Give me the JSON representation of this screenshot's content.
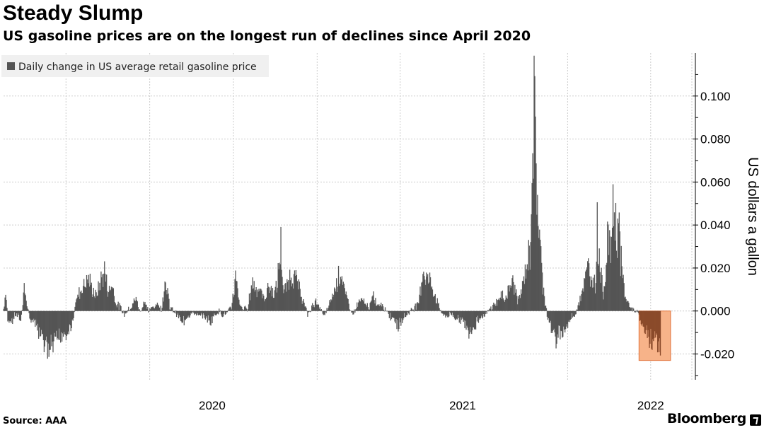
{
  "header": {
    "title": "Steady Slump",
    "subtitle": "US gasoline prices are on the longest run of declines since April 2020"
  },
  "footer": {
    "source": "Source: AAA",
    "brand": "Bloomberg"
  },
  "colors": {
    "bar": "#555555",
    "highlight_fill": "#f7b389",
    "highlight_stroke": "#e2733a",
    "highlight_bar": "#8a4a2a",
    "grid": "#cccccc",
    "legend_bg": "#f0f0f0"
  },
  "chart_data": {
    "type": "bar",
    "title": "Steady Slump",
    "subtitle": "US gasoline prices are on the longest run of declines since April 2020",
    "legend": [
      "Daily change in US average retail gasoline price"
    ],
    "legend_position": "top-left",
    "ylabel": "US dollars a gallon",
    "xlabel": "",
    "ylim": [
      -0.032,
      0.12
    ],
    "yticks": [
      -0.02,
      0.0,
      0.02,
      0.04,
      0.06,
      0.08,
      0.1
    ],
    "ytick_labels": [
      "-0.020",
      "0.000",
      "0.020",
      "0.040",
      "0.060",
      "0.080",
      "0.100"
    ],
    "x_domain": [
      "2019-09-01",
      "2022-05-31"
    ],
    "x_year_labels": [
      {
        "label": "2020",
        "date": "2020-07-01"
      },
      {
        "label": "2021",
        "date": "2021-07-01"
      },
      {
        "label": "2022",
        "date": "2022-04-01"
      }
    ],
    "x_gridlines": [
      "2019-12-01",
      "2020-04-01",
      "2020-08-01",
      "2020-12-01",
      "2021-04-01",
      "2021-08-01",
      "2021-12-01",
      "2022-04-01",
      "2022-05-31"
    ],
    "highlight": {
      "start": "2022-03-15",
      "end": "2022-04-30",
      "y0": -0.023,
      "y1": 0.0
    },
    "series": [
      {
        "name": "Daily change in US average retail gasoline price",
        "keyframes": [
          [
            "2019-09-01",
            0.001
          ],
          [
            "2019-09-04",
            0.011
          ],
          [
            "2019-09-07",
            -0.004
          ],
          [
            "2019-09-12",
            -0.006
          ],
          [
            "2019-09-18",
            -0.002
          ],
          [
            "2019-09-26",
            -0.005
          ],
          [
            "2019-10-01",
            0.012
          ],
          [
            "2019-10-04",
            0.006
          ],
          [
            "2019-10-09",
            -0.004
          ],
          [
            "2019-10-14",
            -0.006
          ],
          [
            "2019-10-20",
            -0.01
          ],
          [
            "2019-10-26",
            -0.014
          ],
          [
            "2019-11-01",
            -0.019
          ],
          [
            "2019-11-06",
            -0.022
          ],
          [
            "2019-11-12",
            -0.02
          ],
          [
            "2019-11-18",
            -0.016
          ],
          [
            "2019-11-25",
            -0.013
          ],
          [
            "2019-12-02",
            -0.012
          ],
          [
            "2019-12-08",
            -0.009
          ],
          [
            "2019-12-12",
            -0.003
          ],
          [
            "2019-12-15",
            0.005
          ],
          [
            "2019-12-20",
            0.01
          ],
          [
            "2019-12-26",
            0.014
          ],
          [
            "2020-01-02",
            0.018
          ],
          [
            "2020-01-08",
            0.012
          ],
          [
            "2020-01-14",
            0.008
          ],
          [
            "2020-01-20",
            0.016
          ],
          [
            "2020-01-26",
            0.022
          ],
          [
            "2020-02-01",
            0.01
          ],
          [
            "2020-02-06",
            0.015
          ],
          [
            "2020-02-12",
            0.004
          ],
          [
            "2020-02-18",
            0.002
          ],
          [
            "2020-02-24",
            -0.002
          ],
          [
            "2020-03-01",
            0.001
          ],
          [
            "2020-03-06",
            0.003
          ],
          [
            "2020-03-12",
            0.007
          ],
          [
            "2020-03-18",
            -0.001
          ],
          [
            "2020-03-24",
            0.006
          ],
          [
            "2020-03-30",
            0.0
          ],
          [
            "2020-04-05",
            0.002
          ],
          [
            "2020-04-12",
            0.004
          ],
          [
            "2020-04-18",
            0.001
          ],
          [
            "2020-04-24",
            0.019
          ],
          [
            "2020-04-30",
            0.002
          ],
          [
            "2020-05-06",
            0.0
          ],
          [
            "2020-05-12",
            -0.002
          ],
          [
            "2020-05-18",
            -0.006
          ],
          [
            "2020-05-24",
            -0.004
          ],
          [
            "2020-05-30",
            -0.002
          ],
          [
            "2020-06-05",
            -0.001
          ],
          [
            "2020-06-11",
            -0.003
          ],
          [
            "2020-06-17",
            -0.002
          ],
          [
            "2020-06-23",
            -0.004
          ],
          [
            "2020-06-29",
            -0.006
          ],
          [
            "2020-07-05",
            -0.002
          ],
          [
            "2020-07-11",
            0.0
          ],
          [
            "2020-07-17",
            -0.002
          ],
          [
            "2020-07-23",
            -0.001
          ],
          [
            "2020-07-29",
            0.002
          ],
          [
            "2020-08-04",
            0.018
          ],
          [
            "2020-08-10",
            0.003
          ],
          [
            "2020-08-16",
            0.001
          ],
          [
            "2020-08-22",
            0.002
          ],
          [
            "2020-08-28",
            0.016
          ],
          [
            "2020-09-03",
            0.013
          ],
          [
            "2020-09-09",
            0.011
          ],
          [
            "2020-09-15",
            0.006
          ],
          [
            "2020-09-21",
            0.014
          ],
          [
            "2020-09-27",
            0.01
          ],
          [
            "2020-10-03",
            0.012
          ],
          [
            "2020-10-09",
            0.036
          ],
          [
            "2020-10-13",
            0.009
          ],
          [
            "2020-10-18",
            0.014
          ],
          [
            "2020-10-24",
            0.021
          ],
          [
            "2020-10-30",
            0.018
          ],
          [
            "2020-11-05",
            0.012
          ],
          [
            "2020-11-11",
            0.005
          ],
          [
            "2020-11-17",
            -0.002
          ],
          [
            "2020-11-23",
            0.002
          ],
          [
            "2020-11-29",
            0.006
          ],
          [
            "2020-12-05",
            0.001
          ],
          [
            "2020-12-11",
            -0.002
          ],
          [
            "2020-12-17",
            0.002
          ],
          [
            "2020-12-23",
            0.008
          ],
          [
            "2020-12-29",
            0.015
          ],
          [
            "2021-01-04",
            0.023
          ],
          [
            "2021-01-10",
            0.01
          ],
          [
            "2021-01-16",
            0.004
          ],
          [
            "2021-01-22",
            -0.002
          ],
          [
            "2021-01-28",
            0.003
          ],
          [
            "2021-02-03",
            0.006
          ],
          [
            "2021-02-09",
            0.004
          ],
          [
            "2021-02-15",
            0.002
          ],
          [
            "2021-02-21",
            0.008
          ],
          [
            "2021-02-27",
            0.003
          ],
          [
            "2021-03-05",
            0.004
          ],
          [
            "2021-03-11",
            0.001
          ],
          [
            "2021-03-17",
            -0.003
          ],
          [
            "2021-03-23",
            -0.004
          ],
          [
            "2021-03-29",
            -0.009
          ],
          [
            "2021-04-04",
            -0.004
          ],
          [
            "2021-04-10",
            -0.002
          ],
          [
            "2021-04-16",
            0.0
          ],
          [
            "2021-04-22",
            0.002
          ],
          [
            "2021-04-28",
            0.005
          ],
          [
            "2021-05-04",
            0.023
          ],
          [
            "2021-05-10",
            0.018
          ],
          [
            "2021-05-16",
            0.015
          ],
          [
            "2021-05-22",
            0.008
          ],
          [
            "2021-05-28",
            0.002
          ],
          [
            "2021-06-03",
            -0.002
          ],
          [
            "2021-06-09",
            -0.003
          ],
          [
            "2021-06-15",
            -0.001
          ],
          [
            "2021-06-21",
            -0.004
          ],
          [
            "2021-06-27",
            -0.005
          ],
          [
            "2021-07-03",
            -0.007
          ],
          [
            "2021-07-09",
            -0.01
          ],
          [
            "2021-07-15",
            -0.011
          ],
          [
            "2021-07-21",
            -0.006
          ],
          [
            "2021-07-27",
            -0.003
          ],
          [
            "2021-08-02",
            -0.002
          ],
          [
            "2021-08-08",
            0.0
          ],
          [
            "2021-08-14",
            0.003
          ],
          [
            "2021-08-20",
            0.005
          ],
          [
            "2021-08-26",
            0.008
          ],
          [
            "2021-09-01",
            0.007
          ],
          [
            "2021-09-07",
            0.013
          ],
          [
            "2021-09-13",
            0.016
          ],
          [
            "2021-09-19",
            0.006
          ],
          [
            "2021-09-25",
            0.01
          ],
          [
            "2021-10-01",
            0.023
          ],
          [
            "2021-10-07",
            0.032
          ],
          [
            "2021-10-10",
            0.085
          ],
          [
            "2021-10-13",
            0.108
          ],
          [
            "2021-10-17",
            0.07
          ],
          [
            "2021-10-21",
            0.04
          ],
          [
            "2021-10-25",
            0.018
          ],
          [
            "2021-10-29",
            0.005
          ],
          [
            "2021-11-02",
            -0.004
          ],
          [
            "2021-11-06",
            -0.007
          ],
          [
            "2021-11-10",
            -0.012
          ],
          [
            "2021-11-14",
            -0.016
          ],
          [
            "2021-11-18",
            -0.01
          ],
          [
            "2021-11-22",
            -0.013
          ],
          [
            "2021-11-26",
            -0.011
          ],
          [
            "2021-11-30",
            -0.008
          ],
          [
            "2021-12-04",
            -0.005
          ],
          [
            "2021-12-08",
            -0.003
          ],
          [
            "2021-12-12",
            -0.002
          ],
          [
            "2021-12-16",
            0.004
          ],
          [
            "2021-12-20",
            0.008
          ],
          [
            "2021-12-24",
            0.014
          ],
          [
            "2021-12-28",
            0.018
          ],
          [
            "2022-01-01",
            0.028
          ],
          [
            "2022-01-04",
            0.015
          ],
          [
            "2022-01-07",
            0.022
          ],
          [
            "2022-01-10",
            0.012
          ],
          [
            "2022-01-13",
            0.045
          ],
          [
            "2022-01-16",
            0.03
          ],
          [
            "2022-01-19",
            0.018
          ],
          [
            "2022-01-22",
            0.01
          ],
          [
            "2022-01-25",
            0.02
          ],
          [
            "2022-01-28",
            0.045
          ],
          [
            "2022-02-01",
            0.03
          ],
          [
            "2022-02-04",
            0.05
          ],
          [
            "2022-02-07",
            0.058
          ],
          [
            "2022-02-10",
            0.04
          ],
          [
            "2022-02-13",
            0.052
          ],
          [
            "2022-02-16",
            0.03
          ],
          [
            "2022-02-19",
            0.018
          ],
          [
            "2022-02-22",
            0.01
          ],
          [
            "2022-02-25",
            0.006
          ],
          [
            "2022-02-28",
            0.004
          ],
          [
            "2022-03-04",
            0.001
          ],
          [
            "2022-03-09",
            0.0
          ],
          [
            "2022-03-14",
            -0.001
          ],
          [
            "2022-03-18",
            -0.006
          ],
          [
            "2022-03-22",
            -0.009
          ],
          [
            "2022-03-26",
            -0.012
          ],
          [
            "2022-03-30",
            -0.015
          ],
          [
            "2022-04-03",
            -0.018
          ],
          [
            "2022-04-06",
            -0.014
          ],
          [
            "2022-04-09",
            -0.016
          ],
          [
            "2022-04-12",
            -0.02
          ],
          [
            "2022-04-15",
            -0.019
          ]
        ]
      }
    ]
  }
}
